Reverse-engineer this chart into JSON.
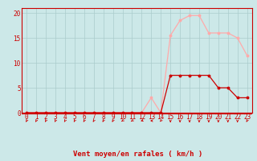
{
  "x": [
    0,
    1,
    2,
    3,
    4,
    5,
    6,
    7,
    8,
    9,
    10,
    11,
    12,
    13,
    14,
    15,
    16,
    17,
    18,
    19,
    20,
    21,
    22,
    23
  ],
  "y_mean": [
    0,
    0,
    0,
    0,
    0,
    0,
    0,
    0,
    0,
    0,
    0,
    0,
    0,
    0,
    0,
    7.5,
    7.5,
    7.5,
    7.5,
    7.5,
    5,
    5,
    3,
    3
  ],
  "y_gust": [
    0,
    0,
    0,
    0,
    0,
    0,
    0,
    0,
    0,
    0,
    0,
    0,
    0,
    3,
    0,
    15.5,
    18.5,
    19.5,
    19.5,
    16,
    16,
    16,
    15,
    11.5
  ],
  "mean_color": "#cc0000",
  "gust_color": "#ffaaaa",
  "bg_color": "#cce8e8",
  "grid_color": "#aacccc",
  "xlabel": "Vent moyen/en rafales ( km/h )",
  "ylabel_ticks": [
    0,
    5,
    10,
    15,
    20
  ],
  "xlim": [
    -0.5,
    23.5
  ],
  "ylim": [
    0,
    21
  ],
  "xticks": [
    0,
    1,
    2,
    3,
    4,
    5,
    6,
    7,
    8,
    9,
    10,
    11,
    12,
    13,
    14,
    15,
    16,
    17,
    18,
    19,
    20,
    21,
    22,
    23
  ],
  "tick_fontsize": 5.5,
  "xlabel_fontsize": 6.5
}
